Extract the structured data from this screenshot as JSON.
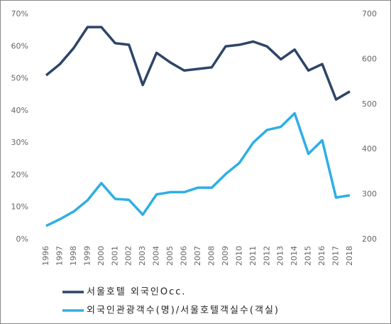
{
  "chart_data": {
    "type": "line",
    "categories": [
      "1996",
      "1997",
      "1998",
      "1999",
      "2000",
      "2001",
      "2002",
      "2003",
      "2004",
      "2005",
      "2006",
      "2007",
      "2008",
      "2009",
      "2010",
      "2011",
      "2012",
      "2013",
      "2014",
      "2015",
      "2016",
      "2017",
      "2018"
    ],
    "series": [
      {
        "name": "서울호텔 외국인Occ.",
        "color": "#2e4468",
        "axis": "y",
        "values": [
          51,
          54.5,
          59.5,
          66,
          66,
          61,
          60.5,
          48,
          58,
          55,
          52.5,
          53,
          53.5,
          60,
          60.5,
          61.5,
          60,
          56,
          59,
          52.5,
          54.5,
          43.5,
          46
        ]
      },
      {
        "name": "외국인관광객수(명)/서울호텔객실수(객실)",
        "color": "#2eaee6",
        "axis": "y2",
        "values": [
          230,
          245,
          262,
          287,
          325,
          290,
          288,
          255,
          300,
          305,
          305,
          315,
          315,
          345,
          370,
          415,
          443,
          450,
          480,
          390,
          420,
          293,
          298
        ]
      }
    ],
    "ylim": [
      0,
      70
    ],
    "yticks": [
      {
        "value": 0,
        "label": "0%"
      },
      {
        "value": 10,
        "label": "10%"
      },
      {
        "value": 20,
        "label": "20%"
      },
      {
        "value": 30,
        "label": "30%"
      },
      {
        "value": 40,
        "label": "40%"
      },
      {
        "value": 50,
        "label": "50%"
      },
      {
        "value": 60,
        "label": "60%"
      },
      {
        "value": 70,
        "label": "70%"
      }
    ],
    "y2lim": [
      200,
      700
    ],
    "y2ticks": [
      200,
      300,
      400,
      500,
      600,
      700
    ],
    "grid": false,
    "legend": "bottom"
  }
}
